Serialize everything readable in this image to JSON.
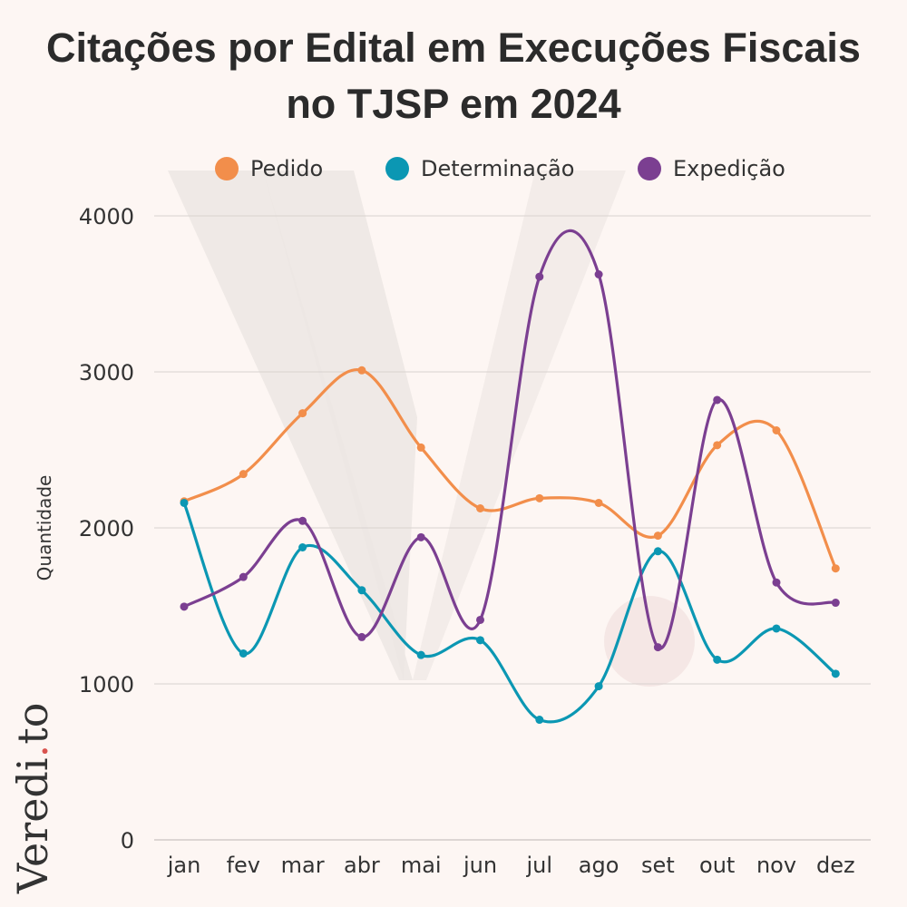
{
  "title_line1": "Citações por Edital em Execuções Fiscais",
  "title_line2": "no TJSP em 2024",
  "brand": {
    "name": "Veredi",
    "dot": ".",
    "suffix": "to",
    "dot_color": "#d9534f"
  },
  "colors": {
    "background": "#fdf6f3",
    "grid": "#d8d2cf",
    "watermark": "#ece6e3"
  },
  "chart_data": {
    "type": "line",
    "title": "Citações por Edital em Execuções Fiscais no TJSP em 2024",
    "xlabel": "",
    "ylabel": "Quantidade",
    "categories": [
      "jan",
      "fev",
      "mar",
      "abr",
      "mai",
      "jun",
      "jul",
      "ago",
      "set",
      "out",
      "nov",
      "dez"
    ],
    "yticks": [
      0,
      1000,
      2000,
      3000,
      4000
    ],
    "ylim": [
      0,
      4000
    ],
    "grid": true,
    "legend_position": "top",
    "series": [
      {
        "name": "Pedido",
        "color": "#f28e4b",
        "values": [
          2170,
          2345,
          2735,
          3010,
          2515,
          2125,
          2190,
          2160,
          1950,
          2530,
          2625,
          1740
        ]
      },
      {
        "name": "Determinação",
        "color": "#0b97b3",
        "values": [
          2160,
          1195,
          1875,
          1600,
          1185,
          1280,
          770,
          985,
          1850,
          1155,
          1355,
          1065
        ]
      },
      {
        "name": "Expedição",
        "color": "#7b3f91",
        "values": [
          1495,
          1685,
          2045,
          1300,
          1940,
          1410,
          3610,
          3625,
          1235,
          2820,
          1650,
          1520
        ]
      }
    ]
  }
}
